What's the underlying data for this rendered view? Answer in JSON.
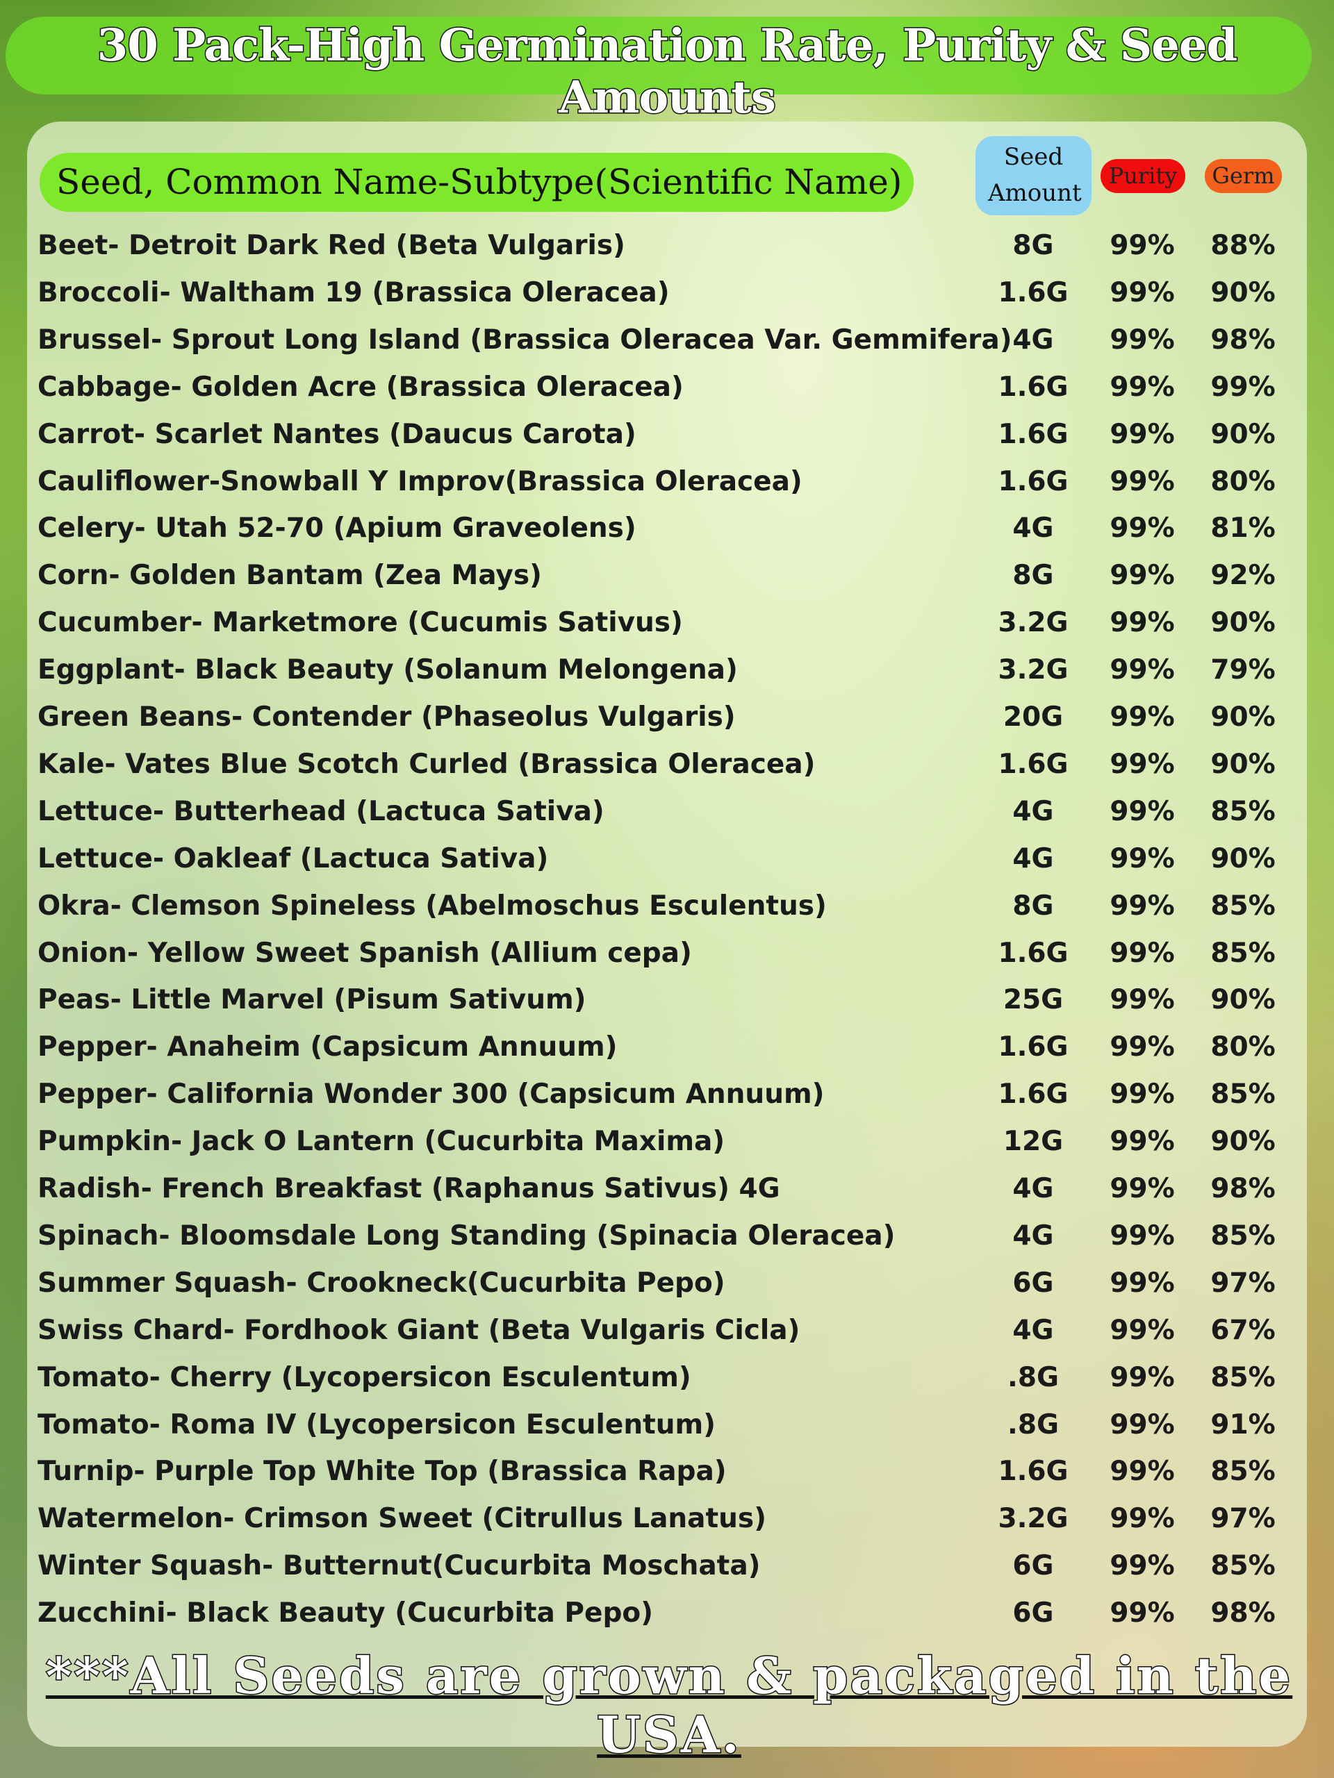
{
  "header": {
    "title": "30 Pack-High Germination Rate, Purity & Seed Amounts"
  },
  "table": {
    "headers": [
      "Seed, Common Name-Subtype(Scientific Name)",
      "Seed Amount",
      "Purity",
      "Germ"
    ],
    "rows": [
      [
        "Beet- Detroit Dark Red (Beta Vulgaris)",
        "8G",
        "99%",
        "88%"
      ],
      [
        "Broccoli- Waltham 19 (Brassica Oleracea)",
        "1.6G",
        "99%",
        "90%"
      ],
      [
        "Brussel- Sprout Long Island (Brassica Oleracea Var. Gemmifera)",
        "4G",
        "99%",
        "98%"
      ],
      [
        "Cabbage- Golden Acre (Brassica Oleracea)",
        "1.6G",
        "99%",
        "99%"
      ],
      [
        "Carrot- Scarlet Nantes (Daucus Carota)",
        "1.6G",
        "99%",
        "90%"
      ],
      [
        "Cauliflower-Snowball Y Improv(Brassica Oleracea)",
        "1.6G",
        "99%",
        "80%"
      ],
      [
        "Celery- Utah 52-70 (Apium Graveolens)",
        "4G",
        "99%",
        "81%"
      ],
      [
        "Corn- Golden Bantam (Zea Mays)",
        "8G",
        "99%",
        "92%"
      ],
      [
        "Cucumber- Marketmore (Cucumis Sativus)",
        "3.2G",
        "99%",
        "90%"
      ],
      [
        "Eggplant- Black Beauty (Solanum Melongena)",
        "3.2G",
        "99%",
        "79%"
      ],
      [
        "Green Beans- Contender (Phaseolus Vulgaris)",
        "20G",
        "99%",
        "90%"
      ],
      [
        "Kale- Vates Blue Scotch Curled (Brassica Oleracea)",
        "1.6G",
        "99%",
        "90%"
      ],
      [
        "Lettuce- Butterhead (Lactuca Sativa)",
        "4G",
        "99%",
        "85%"
      ],
      [
        "Lettuce- Oakleaf (Lactuca Sativa)",
        "4G",
        "99%",
        "90%"
      ],
      [
        "Okra- Clemson Spineless (Abelmoschus Esculentus)",
        "8G",
        "99%",
        "85%"
      ],
      [
        "Onion- Yellow Sweet Spanish (Allium cepa)",
        "1.6G",
        "99%",
        "85%"
      ],
      [
        "Peas- Little Marvel (Pisum Sativum)",
        "25G",
        "99%",
        "90%"
      ],
      [
        "Pepper- Anaheim (Capsicum Annuum)",
        "1.6G",
        "99%",
        "80%"
      ],
      [
        "Pepper- California Wonder 300 (Capsicum Annuum)",
        "1.6G",
        "99%",
        "85%"
      ],
      [
        "Pumpkin- Jack O Lantern (Cucurbita Maxima)",
        "12G",
        "99%",
        "90%"
      ],
      [
        "Radish- French Breakfast (Raphanus Sativus) 4G",
        "4G",
        "99%",
        "98%"
      ],
      [
        "Spinach- Bloomsdale Long Standing (Spinacia Oleracea)",
        "4G",
        "99%",
        "85%"
      ],
      [
        "Summer Squash- Crookneck(Cucurbita Pepo)",
        "6G",
        "99%",
        "97%"
      ],
      [
        "Swiss Chard- Fordhook Giant (Beta Vulgaris Cicla)",
        "4G",
        "99%",
        "67%"
      ],
      [
        "Tomato- Cherry (Lycopersicon Esculentum)",
        ".8G",
        "99%",
        "85%"
      ],
      [
        "Tomato- Roma IV (Lycopersicon Esculentum)",
        ".8G",
        "99%",
        "91%"
      ],
      [
        "Turnip- Purple Top White Top (Brassica Rapa)",
        "1.6G",
        "99%",
        "85%"
      ],
      [
        "Watermelon- Crimson Sweet (Citrullus Lanatus)",
        "3.2G",
        "99%",
        "97%"
      ],
      [
        "Winter Squash- Butternut(Cucurbita Moschata)",
        "6G",
        "99%",
        "85%"
      ],
      [
        "Zucchini- Black Beauty (Cucurbita Pepo)",
        "6G",
        "99%",
        "98%"
      ]
    ]
  },
  "footer": "***All Seeds are grown & packaged in the USA."
}
